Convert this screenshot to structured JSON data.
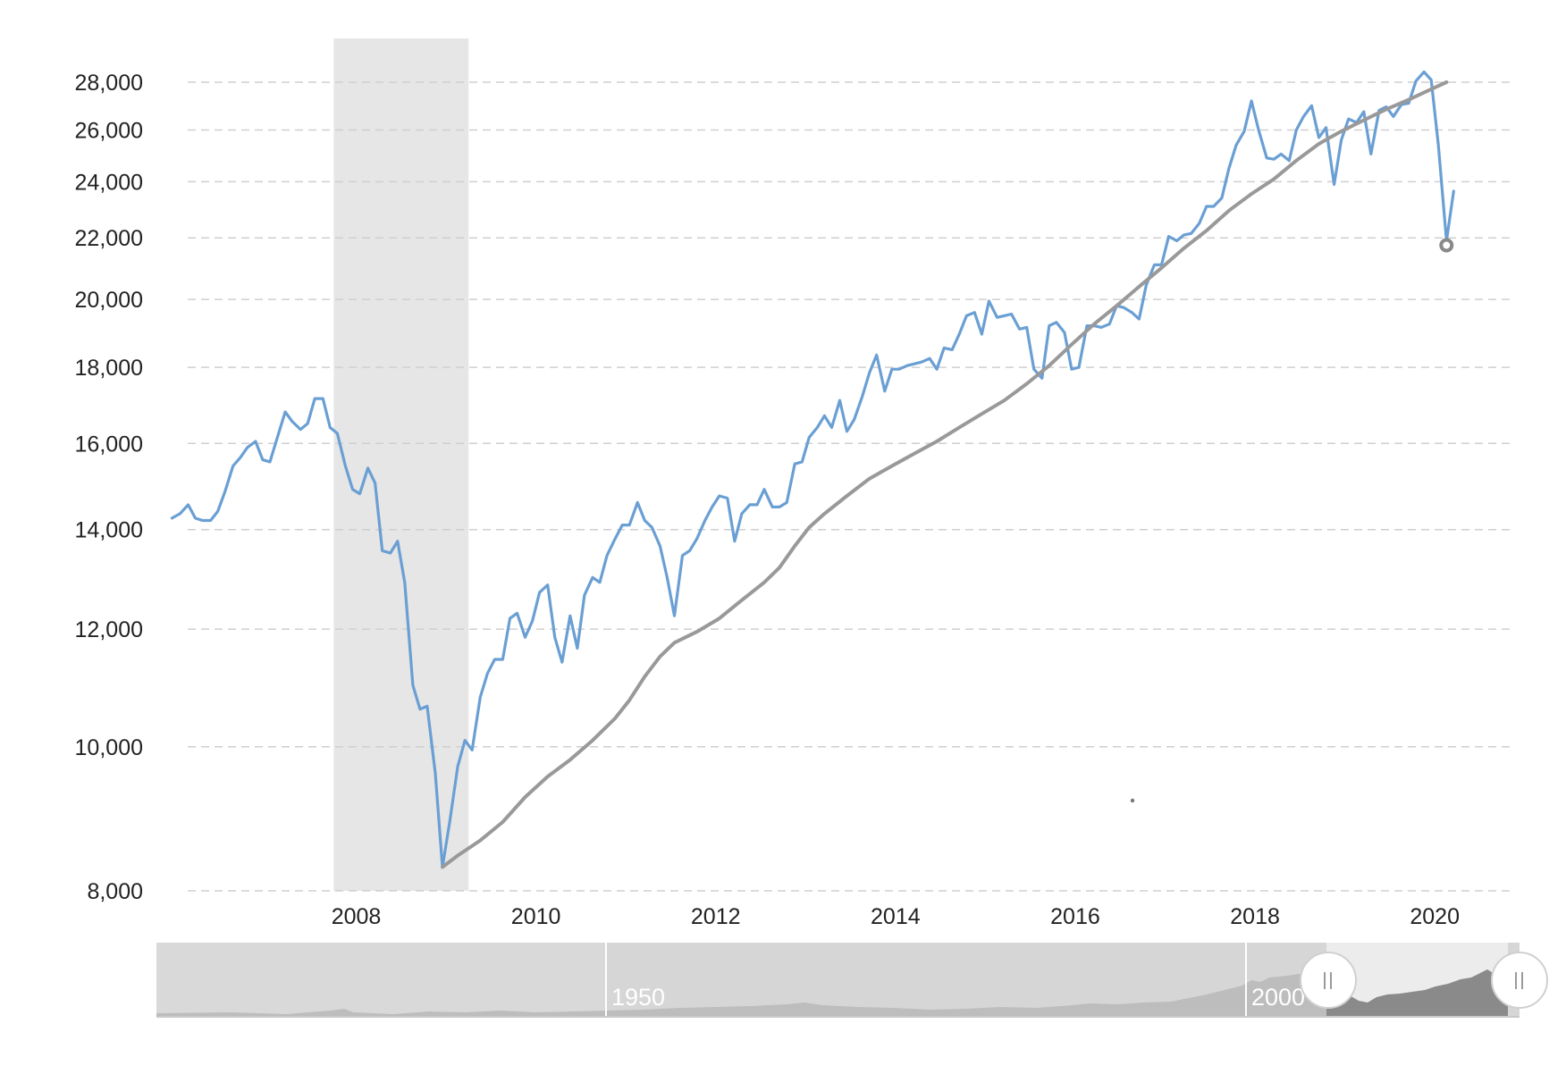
{
  "chart_data": {
    "type": "line",
    "title": "",
    "xlabel": "",
    "ylabel": "",
    "y_scale": "log",
    "ylim": [
      7800,
      29000
    ],
    "xlim": [
      2005.95,
      2020.8
    ],
    "grid": true,
    "grid_style": "dashed-horizontal",
    "y_ticks": [
      8000,
      10000,
      12000,
      14000,
      16000,
      18000,
      20000,
      22000,
      24000,
      26000,
      28000
    ],
    "y_tick_labels": [
      "8,000",
      "10,000",
      "12,000",
      "14,000",
      "16,000",
      "18,000",
      "20,000",
      "22,000",
      "24,000",
      "26,000",
      "28,000"
    ],
    "x_ticks": [
      2008,
      2010,
      2012,
      2014,
      2016,
      2018,
      2020
    ],
    "x_tick_labels": [
      "2008",
      "2010",
      "2012",
      "2014",
      "2016",
      "2018",
      "2020"
    ],
    "shaded_regions": [
      {
        "from": 2007.75,
        "to": 2009.25,
        "color": "#e6e6e6"
      }
    ],
    "series": [
      {
        "color": "#6a9fd4",
        "points": [
          [
            2005.95,
            14250
          ],
          [
            2006.04,
            14350
          ],
          [
            2006.13,
            14550
          ],
          [
            2006.21,
            14250
          ],
          [
            2006.29,
            14200
          ],
          [
            2006.38,
            14200
          ],
          [
            2006.46,
            14400
          ],
          [
            2006.54,
            14850
          ],
          [
            2006.63,
            15450
          ],
          [
            2006.71,
            15650
          ],
          [
            2006.79,
            15900
          ],
          [
            2006.88,
            16050
          ],
          [
            2006.96,
            15600
          ],
          [
            2007.04,
            15550
          ],
          [
            2007.13,
            16200
          ],
          [
            2007.21,
            16800
          ],
          [
            2007.29,
            16550
          ],
          [
            2007.38,
            16350
          ],
          [
            2007.46,
            16500
          ],
          [
            2007.54,
            17150
          ],
          [
            2007.63,
            17150
          ],
          [
            2007.71,
            16400
          ],
          [
            2007.79,
            16250
          ],
          [
            2007.88,
            15450
          ],
          [
            2007.96,
            14900
          ],
          [
            2008.04,
            14800
          ],
          [
            2008.13,
            15400
          ],
          [
            2008.21,
            15050
          ],
          [
            2008.29,
            13550
          ],
          [
            2008.38,
            13500
          ],
          [
            2008.46,
            13750
          ],
          [
            2008.54,
            12900
          ],
          [
            2008.63,
            11000
          ],
          [
            2008.71,
            10600
          ],
          [
            2008.79,
            10650
          ],
          [
            2008.88,
            9600
          ],
          [
            2008.96,
            8300
          ],
          [
            2009.04,
            8900
          ],
          [
            2009.13,
            9700
          ],
          [
            2009.21,
            10100
          ],
          [
            2009.29,
            9950
          ],
          [
            2009.38,
            10800
          ],
          [
            2009.46,
            11200
          ],
          [
            2009.54,
            11450
          ],
          [
            2009.63,
            11450
          ],
          [
            2009.71,
            12200
          ],
          [
            2009.79,
            12300
          ],
          [
            2009.88,
            11850
          ],
          [
            2009.96,
            12150
          ],
          [
            2010.04,
            12700
          ],
          [
            2010.13,
            12850
          ],
          [
            2010.21,
            11850
          ],
          [
            2010.29,
            11400
          ],
          [
            2010.38,
            12250
          ],
          [
            2010.46,
            11650
          ],
          [
            2010.54,
            12650
          ],
          [
            2010.63,
            13000
          ],
          [
            2010.71,
            12900
          ],
          [
            2010.79,
            13450
          ],
          [
            2010.88,
            13800
          ],
          [
            2010.96,
            14100
          ],
          [
            2011.04,
            14100
          ],
          [
            2011.13,
            14600
          ],
          [
            2011.21,
            14200
          ],
          [
            2011.29,
            14050
          ],
          [
            2011.38,
            13650
          ],
          [
            2011.46,
            13000
          ],
          [
            2011.54,
            12250
          ],
          [
            2011.63,
            13450
          ],
          [
            2011.71,
            13550
          ],
          [
            2011.79,
            13800
          ],
          [
            2011.88,
            14200
          ],
          [
            2011.96,
            14500
          ],
          [
            2012.04,
            14750
          ],
          [
            2012.13,
            14700
          ],
          [
            2012.21,
            13750
          ],
          [
            2012.29,
            14350
          ],
          [
            2012.38,
            14550
          ],
          [
            2012.46,
            14550
          ],
          [
            2012.54,
            14900
          ],
          [
            2012.63,
            14500
          ],
          [
            2012.71,
            14500
          ],
          [
            2012.79,
            14600
          ],
          [
            2012.88,
            15500
          ],
          [
            2012.96,
            15550
          ],
          [
            2013.04,
            16150
          ],
          [
            2013.13,
            16400
          ],
          [
            2013.21,
            16700
          ],
          [
            2013.29,
            16400
          ],
          [
            2013.38,
            17100
          ],
          [
            2013.46,
            16300
          ],
          [
            2013.54,
            16600
          ],
          [
            2013.63,
            17200
          ],
          [
            2013.71,
            17850
          ],
          [
            2013.79,
            18350
          ],
          [
            2013.88,
            17350
          ],
          [
            2013.96,
            17950
          ],
          [
            2014.04,
            17950
          ],
          [
            2014.13,
            18050
          ],
          [
            2014.21,
            18100
          ],
          [
            2014.29,
            18150
          ],
          [
            2014.38,
            18250
          ],
          [
            2014.46,
            17950
          ],
          [
            2014.54,
            18550
          ],
          [
            2014.63,
            18500
          ],
          [
            2014.71,
            18950
          ],
          [
            2014.79,
            19500
          ],
          [
            2014.88,
            19600
          ],
          [
            2014.96,
            18950
          ],
          [
            2015.04,
            19950
          ],
          [
            2015.13,
            19450
          ],
          [
            2015.21,
            19500
          ],
          [
            2015.29,
            19550
          ],
          [
            2015.38,
            19100
          ],
          [
            2015.46,
            19150
          ],
          [
            2015.54,
            17950
          ],
          [
            2015.63,
            17700
          ],
          [
            2015.71,
            19200
          ],
          [
            2015.79,
            19300
          ],
          [
            2015.88,
            19000
          ],
          [
            2015.96,
            17950
          ],
          [
            2016.04,
            18000
          ],
          [
            2016.13,
            19200
          ],
          [
            2016.21,
            19200
          ],
          [
            2016.29,
            19150
          ],
          [
            2016.38,
            19250
          ],
          [
            2016.46,
            19800
          ],
          [
            2016.54,
            19750
          ],
          [
            2016.63,
            19600
          ],
          [
            2016.71,
            19400
          ],
          [
            2016.79,
            20450
          ],
          [
            2016.88,
            21100
          ],
          [
            2016.96,
            21100
          ],
          [
            2017.04,
            22050
          ],
          [
            2017.13,
            21900
          ],
          [
            2017.21,
            22100
          ],
          [
            2017.29,
            22150
          ],
          [
            2017.38,
            22500
          ],
          [
            2017.46,
            23100
          ],
          [
            2017.54,
            23100
          ],
          [
            2017.63,
            23400
          ],
          [
            2017.71,
            24500
          ],
          [
            2017.79,
            25400
          ],
          [
            2017.88,
            25950
          ],
          [
            2017.96,
            27200
          ],
          [
            2018.04,
            26000
          ],
          [
            2018.13,
            24900
          ],
          [
            2018.21,
            24850
          ],
          [
            2018.29,
            25050
          ],
          [
            2018.38,
            24800
          ],
          [
            2018.46,
            26000
          ],
          [
            2018.54,
            26550
          ],
          [
            2018.63,
            27000
          ],
          [
            2018.71,
            25700
          ],
          [
            2018.79,
            26100
          ],
          [
            2018.88,
            23900
          ],
          [
            2018.96,
            25600
          ],
          [
            2019.04,
            26450
          ],
          [
            2019.13,
            26300
          ],
          [
            2019.21,
            26750
          ],
          [
            2019.29,
            25050
          ],
          [
            2019.38,
            26800
          ],
          [
            2019.46,
            26950
          ],
          [
            2019.54,
            26550
          ],
          [
            2019.63,
            27050
          ],
          [
            2019.71,
            27100
          ],
          [
            2019.79,
            28050
          ],
          [
            2019.88,
            28450
          ],
          [
            2019.96,
            28100
          ],
          [
            2020.04,
            25400
          ],
          [
            2020.13,
            21900
          ],
          [
            2020.21,
            23650
          ]
        ]
      },
      {
        "color": "#999999",
        "points": [
          [
            2008.96,
            8300
          ],
          [
            2009.13,
            8450
          ],
          [
            2009.38,
            8650
          ],
          [
            2009.63,
            8900
          ],
          [
            2009.88,
            9250
          ],
          [
            2010.13,
            9550
          ],
          [
            2010.38,
            9800
          ],
          [
            2010.63,
            10100
          ],
          [
            2010.88,
            10450
          ],
          [
            2011.04,
            10750
          ],
          [
            2011.21,
            11150
          ],
          [
            2011.38,
            11500
          ],
          [
            2011.54,
            11750
          ],
          [
            2011.79,
            11950
          ],
          [
            2012.04,
            12200
          ],
          [
            2012.29,
            12550
          ],
          [
            2012.54,
            12900
          ],
          [
            2012.71,
            13200
          ],
          [
            2012.88,
            13650
          ],
          [
            2013.04,
            14050
          ],
          [
            2013.21,
            14350
          ],
          [
            2013.46,
            14750
          ],
          [
            2013.71,
            15150
          ],
          [
            2013.96,
            15450
          ],
          [
            2014.21,
            15750
          ],
          [
            2014.46,
            16050
          ],
          [
            2014.71,
            16400
          ],
          [
            2014.96,
            16750
          ],
          [
            2015.21,
            17100
          ],
          [
            2015.46,
            17550
          ],
          [
            2015.71,
            18050
          ],
          [
            2015.96,
            18650
          ],
          [
            2016.21,
            19250
          ],
          [
            2016.46,
            19800
          ],
          [
            2016.71,
            20400
          ],
          [
            2016.96,
            21000
          ],
          [
            2017.21,
            21650
          ],
          [
            2017.46,
            22250
          ],
          [
            2017.71,
            22950
          ],
          [
            2017.96,
            23550
          ],
          [
            2018.21,
            24100
          ],
          [
            2018.46,
            24800
          ],
          [
            2018.71,
            25450
          ],
          [
            2018.96,
            25950
          ],
          [
            2019.21,
            26400
          ],
          [
            2019.46,
            26850
          ],
          [
            2019.71,
            27250
          ],
          [
            2019.96,
            27700
          ],
          [
            2020.13,
            28000
          ]
        ]
      }
    ],
    "marker": {
      "x": 2020.13,
      "y": 21750,
      "color": "#888888"
    },
    "navigator": {
      "labels": [
        "1950",
        "2000"
      ],
      "selected_range": "2006-2020"
    }
  }
}
